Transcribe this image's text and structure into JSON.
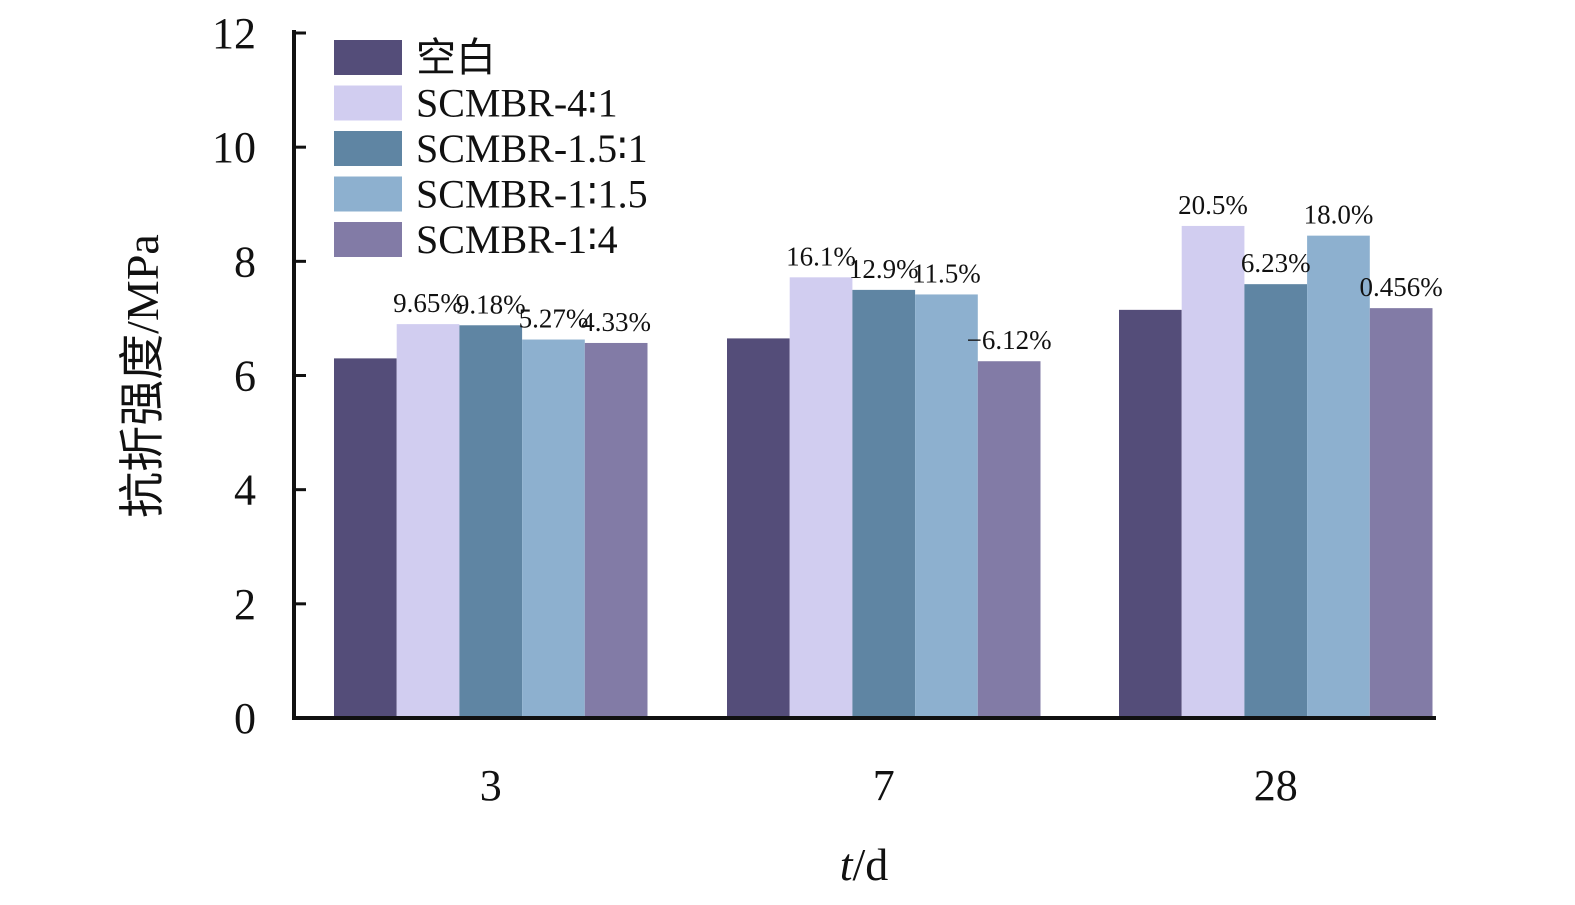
{
  "chart_data": {
    "type": "bar",
    "categories": [
      "3",
      "7",
      "28"
    ],
    "xlabel_italic": "t",
    "xlabel_rest": "/d",
    "ylabel": "抗折强度/MPa",
    "ylim": [
      0,
      12
    ],
    "yticks": [
      0,
      2,
      4,
      6,
      8,
      10,
      12
    ],
    "grid": false,
    "legend_position": "top-left",
    "series": [
      {
        "name": "空白",
        "color": "#544d79",
        "values": [
          6.3,
          6.65,
          7.15
        ],
        "labels": [
          "",
          "",
          ""
        ]
      },
      {
        "name": "SCMBR-4∶1",
        "color": "#d1cdf0",
        "values": [
          6.9,
          7.72,
          8.62
        ],
        "labels": [
          "9.65%",
          "16.1%",
          "20.5%"
        ]
      },
      {
        "name": "SCMBR-1.5∶1",
        "color": "#5f85a3",
        "values": [
          6.88,
          7.5,
          7.6
        ],
        "labels": [
          "9.18%",
          "12.9%",
          "6.23%"
        ]
      },
      {
        "name": "SCMBR-1∶1.5",
        "color": "#8db0cf",
        "values": [
          6.63,
          7.42,
          8.45
        ],
        "labels": [
          "5.27%",
          "11.5%",
          "18.0%"
        ]
      },
      {
        "name": "SCMBR-1∶4",
        "color": "#827ba6",
        "values": [
          6.57,
          6.25,
          7.18
        ],
        "labels": [
          "4.33%",
          "−6.12%",
          "0.456%"
        ]
      }
    ]
  }
}
